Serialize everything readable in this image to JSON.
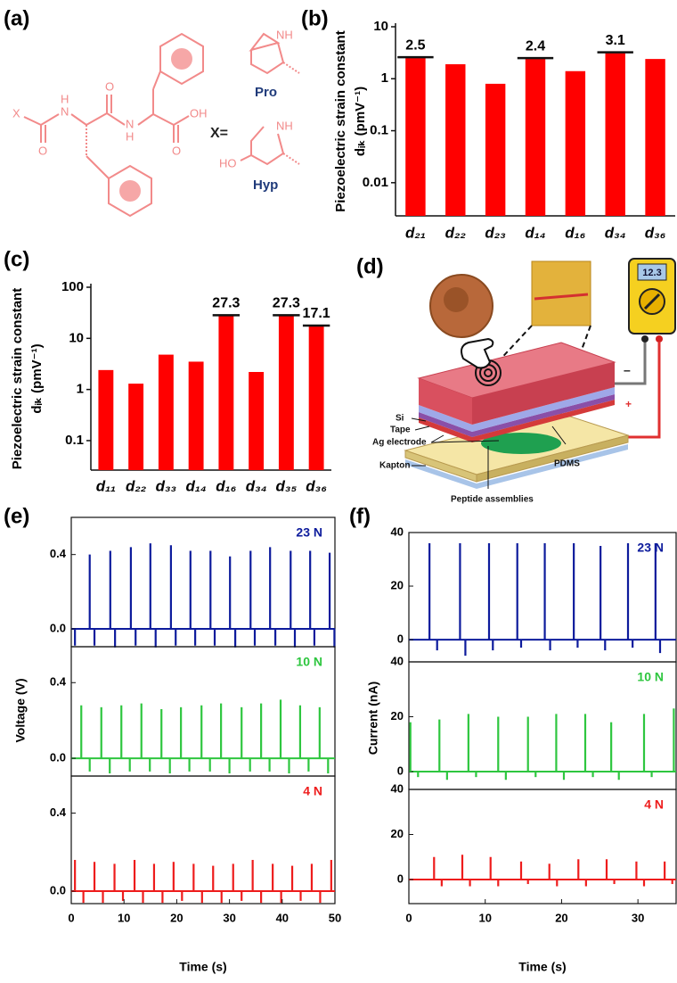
{
  "panel_labels": [
    "(a)",
    "(b)",
    "(c)",
    "(d)",
    "(e)",
    "(f)"
  ],
  "structure": {
    "atoms": [
      "X",
      "H",
      "N",
      "O",
      "O",
      "N",
      "H",
      "O",
      "OH"
    ],
    "x_equals": "X=",
    "pro": {
      "group": "NH",
      "name": "Pro"
    },
    "hyp": {
      "group": "NH",
      "hydroxyl": "HO",
      "name": "Hyp"
    }
  },
  "schematic": {
    "display": "12.3",
    "minus": "–",
    "plus": "+",
    "labels": [
      "Si",
      "Tape",
      "Ag electrode",
      "Kapton",
      "PDMS",
      "Peptide assemblies"
    ]
  },
  "chart_data": [
    {
      "type": "bar",
      "ylabel": [
        "Piezoelectric strain constant",
        "dᵢₖ (pmV⁻¹)"
      ],
      "log": true,
      "ylim": [
        0.0023,
        10
      ],
      "yticks": [
        0.01,
        0.1,
        1,
        10
      ],
      "color": "#ff0000",
      "categories": [
        "d₂₁",
        "d₂₂",
        "d₂₃",
        "d₁₄",
        "d₁₆",
        "d₃₄",
        "d₃₆"
      ],
      "values": [
        2.5,
        1.9,
        0.8,
        2.4,
        1.4,
        3.1,
        2.4
      ],
      "value_labels": [
        "2.5",
        null,
        null,
        "2.4",
        null,
        "3.1",
        null
      ]
    },
    {
      "type": "bar",
      "ylabel": [
        "Piezoelectric strain constant",
        "dᵢₖ (pmV⁻¹)"
      ],
      "log": true,
      "ylim": [
        0.0265,
        100
      ],
      "yticks": [
        0.1,
        1,
        10,
        100
      ],
      "color": "#ff0000",
      "categories": [
        "d₁₁",
        "d₂₂",
        "d₃₃",
        "d₁₄",
        "d₁₆",
        "d₃₄",
        "d₃₅",
        "d₃₆"
      ],
      "values": [
        2.4,
        1.3,
        4.8,
        3.5,
        27.3,
        2.2,
        27.3,
        17.1
      ],
      "value_labels": [
        null,
        null,
        null,
        null,
        "27.3",
        null,
        "27.3",
        "17.1"
      ]
    },
    {
      "type": "stem",
      "xlabel": "Time (s)",
      "ylabel": "Voltage (V)",
      "xlim": [
        0,
        50
      ],
      "xticks": [
        0,
        10,
        20,
        30,
        40,
        50
      ],
      "panels": [
        {
          "label": "23 N",
          "color": "#0d1b9c",
          "ylim": [
            -0.096,
            0.6
          ],
          "yticks": [
            {
              "value": 0,
              "label": "0.0"
            },
            0.4
          ],
          "series": [
            {
              "color": "#0d1b9c",
              "x": [
                3.5,
                7.4,
                11.3,
                15.0,
                18.9,
                22.6,
                26.4,
                30.1,
                34.0,
                37.7,
                41.6,
                45.3,
                49.0
              ],
              "values": [
                0.4,
                0.42,
                0.44,
                0.46,
                0.45,
                0.42,
                0.42,
                0.39,
                0.42,
                0.44,
                0.42,
                0.42,
                0.41
              ]
            },
            {
              "color": "#0d1b9c",
              "x": [
                0.7,
                4.4,
                8.3,
                12.2,
                16.0,
                19.8,
                23.5,
                27.2,
                31.1,
                34.8,
                38.7,
                42.4,
                46.1,
                49.9
              ],
              "values": [
                -0.09,
                -0.09,
                -0.1,
                -0.09,
                -0.1,
                -0.09,
                -0.09,
                -0.09,
                -0.1,
                -0.09,
                -0.09,
                -0.1,
                -0.09,
                -0.1
              ]
            }
          ]
        },
        {
          "label": "10 N",
          "color": "#2ec63f",
          "ylim": [
            -0.094,
            0.59
          ],
          "yticks": [
            {
              "value": 0,
              "label": "0.0"
            },
            0.4
          ],
          "series": [
            {
              "color": "#2ec63f",
              "x": [
                1.9,
                5.7,
                9.5,
                13.3,
                17.1,
                20.8,
                24.7,
                28.4,
                32.3,
                36.0,
                39.7,
                43.4,
                47.1
              ],
              "values": [
                0.28,
                0.27,
                0.28,
                0.29,
                0.26,
                0.27,
                0.28,
                0.29,
                0.27,
                0.29,
                0.31,
                0.28,
                0.27
              ]
            },
            {
              "color": "#2ec63f",
              "x": [
                3.5,
                7.3,
                11.1,
                14.9,
                18.7,
                22.4,
                26.3,
                30.0,
                33.9,
                37.6,
                41.3,
                45.0,
                48.7
              ],
              "values": [
                -0.07,
                -0.08,
                -0.07,
                -0.07,
                -0.08,
                -0.07,
                -0.07,
                -0.08,
                -0.07,
                -0.07,
                -0.08,
                -0.07,
                -0.08
              ]
            }
          ]
        },
        {
          "label": "4 N",
          "color": "#ee1c1c",
          "ylim": [
            -0.064,
            0.59
          ],
          "yticks": [
            {
              "value": 0,
              "label": "0.0"
            },
            0.4
          ],
          "series": [
            {
              "color": "#ee1c1c",
              "x": [
                0.7,
                4.4,
                8.2,
                12.0,
                15.7,
                19.4,
                23.2,
                26.9,
                30.7,
                34.4,
                38.2,
                41.9,
                45.6,
                49.3
              ],
              "values": [
                0.16,
                0.15,
                0.14,
                0.16,
                0.14,
                0.15,
                0.14,
                0.13,
                0.14,
                0.16,
                0.14,
                0.13,
                0.14,
                0.16
              ]
            },
            {
              "color": "#ee1c1c",
              "x": [
                2.3,
                6.0,
                9.8,
                13.6,
                17.3,
                21.0,
                24.8,
                28.5,
                32.3,
                36.0,
                39.8,
                43.5,
                47.2
              ],
              "values": [
                -0.06,
                -0.06,
                -0.05,
                -0.06,
                -0.06,
                -0.05,
                -0.06,
                -0.06,
                -0.05,
                -0.06,
                -0.06,
                -0.05,
                -0.06
              ]
            }
          ]
        }
      ]
    },
    {
      "type": "stem",
      "xlabel": "Time (s)",
      "ylabel": "Current (nA)",
      "xlim": [
        0,
        35
      ],
      "xticks": [
        0,
        10,
        20,
        30
      ],
      "panels": [
        {
          "label": "23 N",
          "color": "#0d1b9c",
          "ylim": [
            -8.3,
            40
          ],
          "yticks": [
            0,
            20,
            40
          ],
          "series": [
            {
              "color": "#0d1b9c",
              "x": [
                2.7,
                6.7,
                10.5,
                14.2,
                17.8,
                21.6,
                25.1,
                28.7,
                32.3
              ],
              "values": [
                36,
                36,
                36,
                36,
                36,
                36,
                35,
                36,
                36
              ]
            },
            {
              "color": "#0d1b9c",
              "x": [
                3.7,
                7.4,
                11.0,
                14.7,
                18.5,
                22.1,
                25.7,
                29.3,
                32.9
              ],
              "values": [
                -4,
                -6,
                -4,
                -3,
                -4,
                -3,
                -4,
                -3,
                -5
              ]
            }
          ]
        },
        {
          "label": "10 N",
          "color": "#2ec63f",
          "ylim": [
            -6.5,
            40
          ],
          "yticks": [
            0,
            20,
            40
          ],
          "series": [
            {
              "color": "#2ec63f",
              "x": [
                0.2,
                4.0,
                7.8,
                11.7,
                15.6,
                19.3,
                23.1,
                26.5,
                30.8,
                34.7
              ],
              "values": [
                18,
                19,
                21,
                20,
                20,
                21,
                21,
                18,
                21,
                23
              ]
            },
            {
              "color": "#2ec63f",
              "x": [
                1.2,
                5.0,
                8.8,
                12.7,
                16.6,
                20.3,
                24.1,
                27.5,
                31.8
              ],
              "values": [
                -2,
                -3,
                -2,
                -3,
                -2,
                -3,
                -2,
                -3,
                -2
              ]
            }
          ]
        },
        {
          "label": "4 N",
          "color": "#ee1c1c",
          "ylim": [
            -10.7,
            40
          ],
          "yticks": [
            0,
            20,
            40
          ],
          "series": [
            {
              "color": "#ee1c1c",
              "x": [
                3.3,
                7.0,
                10.7,
                14.7,
                18.4,
                22.2,
                25.9,
                29.8,
                33.5
              ],
              "values": [
                10,
                11,
                10,
                8,
                7,
                9,
                9,
                8,
                8
              ]
            },
            {
              "color": "#ee1c1c",
              "x": [
                4.3,
                8.0,
                11.7,
                15.6,
                19.4,
                23.2,
                26.9,
                30.8,
                34.5
              ],
              "values": [
                -3,
                -3,
                -3,
                -2,
                -3,
                -3,
                -2,
                -3,
                -2
              ]
            }
          ]
        }
      ]
    }
  ]
}
